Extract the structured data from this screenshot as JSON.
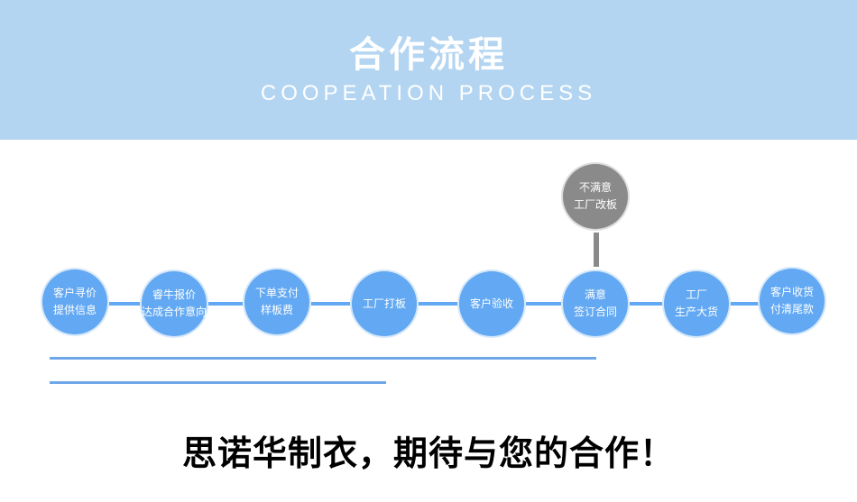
{
  "header": {
    "title": "合作流程",
    "subtitle": "COOPEATION PROCESS"
  },
  "steps": [
    "客户寻价\n提供信息",
    "睿牛报价\n达成合作意向",
    "下单支付\n样板费",
    "工厂打板",
    "客户验收",
    "满意\n签订合同",
    "工厂\n生产大货",
    "客户收货\n付清尾款"
  ],
  "branch": "不满意\n工厂改板",
  "slogan": "思诺华制衣，期待与您的合作！",
  "colors": {
    "header": "#b3d5f1",
    "step": "#62a8f2",
    "branch": "#8a8a8a"
  }
}
